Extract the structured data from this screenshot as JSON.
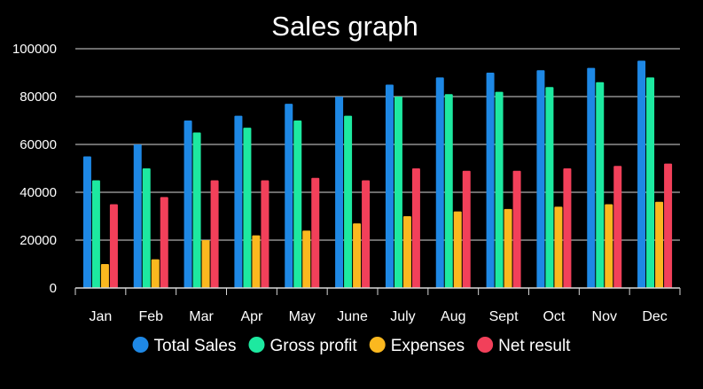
{
  "chart_data": {
    "type": "bar",
    "title": "Sales graph",
    "xlabel": "",
    "ylabel": "",
    "categories": [
      "Jan",
      "Feb",
      "Mar",
      "Apr",
      "May",
      "June",
      "July",
      "Aug",
      "Sept",
      "Oct",
      "Nov",
      "Dec"
    ],
    "ylim": [
      0,
      100000
    ],
    "yticks": [
      "0",
      "20000",
      "40000",
      "60000",
      "80000",
      "100000"
    ],
    "grid": true,
    "legend_position": "bottom",
    "series": [
      {
        "name": "Total Sales",
        "color": "#1e88e5",
        "values": [
          55000,
          60000,
          70000,
          72000,
          77000,
          80000,
          85000,
          88000,
          90000,
          91000,
          92000,
          95000
        ]
      },
      {
        "name": "Gross profit",
        "color": "#1de9a0",
        "values": [
          45000,
          50000,
          65000,
          67000,
          70000,
          72000,
          80000,
          81000,
          82000,
          84000,
          86000,
          88000
        ]
      },
      {
        "name": "Expenses",
        "color": "#fbb81f",
        "values": [
          10000,
          12000,
          20000,
          22000,
          24000,
          27000,
          30000,
          32000,
          33000,
          34000,
          35000,
          36000
        ]
      },
      {
        "name": "Net result",
        "color": "#f2405a",
        "values": [
          35000,
          38000,
          45000,
          45000,
          46000,
          45000,
          50000,
          49000,
          49000,
          50000,
          51000,
          52000
        ]
      }
    ]
  }
}
